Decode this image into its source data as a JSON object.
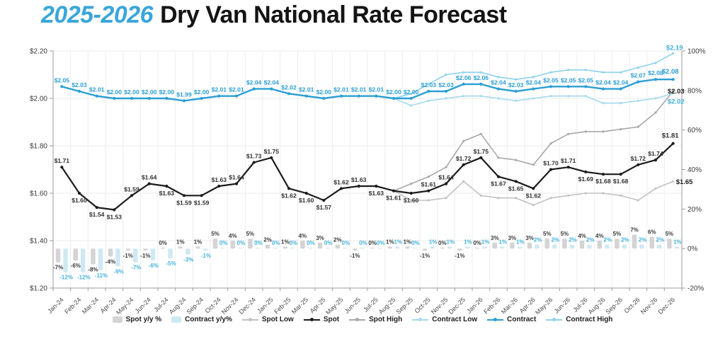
{
  "title": {
    "highlight": "2025-2026",
    "rest": "Dry Van National Rate Forecast",
    "highlight_color": "#3aa6da",
    "text_color": "#141414"
  },
  "chart_data": {
    "type": "combo-bar-line",
    "title": "2025-2026 Dry Van National Rate Forecast",
    "grid": true,
    "legend_position": "bottom",
    "categories": [
      "Jan-24",
      "Feb-24",
      "Mar-24",
      "Apr-24",
      "May-24",
      "Jun-24",
      "Jul-24",
      "Aug-24",
      "Sep-24",
      "Oct-24",
      "Nov-24",
      "Dec-24",
      "Jan-25",
      "Feb-25",
      "Mar-25",
      "Apr-25",
      "May-25",
      "Jun-25",
      "Jul-25",
      "Aug-25",
      "Sep-25",
      "Oct-25",
      "Nov-25",
      "Dec-25",
      "Jan-26",
      "Feb-26",
      "Mar-26",
      "Apr-26",
      "May-26",
      "Jun-26",
      "Jul-26",
      "Aug-26",
      "Sep-26",
      "Oct-26",
      "Nov-26",
      "Dec-26"
    ],
    "left_axis": {
      "min": 1.2,
      "max": 2.2,
      "ticks": [
        "$1.20",
        "$1.40",
        "$1.60",
        "$1.80",
        "$2.00",
        "$2.20"
      ]
    },
    "right_axis": {
      "min": -20,
      "max": 100,
      "ticks": [
        "-20%",
        "0%",
        "20%",
        "40%",
        "60%",
        "80%",
        "100%"
      ]
    },
    "series": [
      {
        "name": "Spot y/y %",
        "type": "bar",
        "axis": "right",
        "color": "#d4d4d4",
        "label_color": "#3a3a3a",
        "values": [
          -7,
          -6,
          -8,
          -4,
          -1,
          -1,
          0,
          1,
          1,
          5,
          4,
          5,
          2,
          1,
          4,
          3,
          2,
          -1,
          0,
          1,
          1,
          -1,
          0,
          -1,
          0,
          3,
          3,
          3,
          5,
          5,
          4,
          4,
          5,
          7,
          6,
          5
        ]
      },
      {
        "name": "Contract y/y%",
        "type": "bar",
        "axis": "right",
        "color": "#cfe9f4",
        "label_color": "#45b3db",
        "values": [
          -12,
          -12,
          -11,
          -9,
          -7,
          -6,
          -5,
          -3,
          -1,
          0,
          0,
          0,
          0,
          0,
          0,
          0,
          0,
          0,
          0,
          1,
          0,
          1,
          1,
          1,
          1,
          1,
          1,
          2,
          2,
          2,
          2,
          2,
          2,
          2,
          2,
          1
        ]
      },
      {
        "name": "Spot Low",
        "type": "line",
        "axis": "left",
        "color": "#c2c2c2",
        "end_label": "$1.65",
        "end_label_color": "#1c1c1c",
        "values": [
          null,
          null,
          null,
          null,
          null,
          null,
          null,
          null,
          null,
          null,
          null,
          null,
          null,
          null,
          null,
          null,
          null,
          null,
          null,
          1.61,
          1.57,
          1.57,
          1.58,
          1.65,
          1.59,
          1.58,
          1.58,
          1.55,
          1.58,
          1.59,
          1.6,
          1.6,
          1.59,
          1.57,
          1.62,
          1.65
        ]
      },
      {
        "name": "Spot",
        "type": "line",
        "axis": "left",
        "color": "#1c1c1c",
        "label_color": "#2f2f2f",
        "point_labels": true,
        "label_prefix": "$",
        "values": [
          1.71,
          1.6,
          1.54,
          1.53,
          1.59,
          1.64,
          1.63,
          1.59,
          1.59,
          1.63,
          1.64,
          1.73,
          1.75,
          1.62,
          1.6,
          1.57,
          1.62,
          1.63,
          1.63,
          1.61,
          1.6,
          1.61,
          1.64,
          1.72,
          1.75,
          1.67,
          1.65,
          1.62,
          1.7,
          1.71,
          1.69,
          1.68,
          1.68,
          1.72,
          1.74,
          1.81
        ]
      },
      {
        "name": "Spot High",
        "type": "line",
        "axis": "left",
        "color": "#a8a8a8",
        "end_label": "$2.03",
        "end_label_color": "#1c1c1c",
        "values": [
          null,
          null,
          null,
          null,
          null,
          null,
          null,
          null,
          null,
          null,
          null,
          null,
          null,
          null,
          null,
          null,
          null,
          null,
          null,
          1.61,
          1.64,
          1.67,
          1.71,
          1.82,
          1.85,
          1.75,
          1.74,
          1.72,
          1.81,
          1.85,
          1.86,
          1.86,
          1.87,
          1.88,
          1.94,
          2.03
        ]
      },
      {
        "name": "Contract Low",
        "type": "line",
        "axis": "left",
        "color": "#a5daee",
        "end_label": "$2.02",
        "end_label_color": "#3fb0dc",
        "values": [
          null,
          null,
          null,
          null,
          null,
          null,
          null,
          null,
          null,
          null,
          null,
          null,
          null,
          null,
          null,
          null,
          null,
          null,
          null,
          2.0,
          1.97,
          1.99,
          2.0,
          2.01,
          2.01,
          2.0,
          1.99,
          2.0,
          2.01,
          2.01,
          2.01,
          1.98,
          1.98,
          1.99,
          2.0,
          2.02
        ]
      },
      {
        "name": "Contract",
        "type": "line",
        "axis": "left",
        "color": "#2b9fd3",
        "label_color": "#2a9ed3",
        "point_labels": true,
        "label_prefix": "$",
        "values": [
          2.05,
          2.03,
          2.01,
          2.0,
          2.0,
          2.0,
          2.0,
          1.99,
          2.0,
          2.01,
          2.01,
          2.04,
          2.04,
          2.02,
          2.01,
          2.0,
          2.01,
          2.01,
          2.01,
          2.0,
          2.0,
          2.03,
          2.03,
          2.06,
          2.06,
          2.04,
          2.03,
          2.04,
          2.05,
          2.05,
          2.05,
          2.04,
          2.04,
          2.07,
          2.08,
          2.08
        ]
      },
      {
        "name": "Contract High",
        "type": "line",
        "axis": "left",
        "color": "#8ed2ea",
        "end_label": "$2.19",
        "end_label_color": "#3fb0dc",
        "values": [
          null,
          null,
          null,
          null,
          null,
          null,
          null,
          null,
          null,
          null,
          null,
          null,
          null,
          null,
          null,
          null,
          null,
          null,
          null,
          2.0,
          2.02,
          2.06,
          2.1,
          2.11,
          2.11,
          2.09,
          2.08,
          2.09,
          2.11,
          2.12,
          2.12,
          2.11,
          2.11,
          2.13,
          2.15,
          2.19
        ]
      }
    ],
    "legend_order": [
      "Spot y/y %",
      "Contract y/y%",
      "Spot Low",
      "Spot",
      "Spot High",
      "Contract Low",
      "Contract",
      "Contract High"
    ]
  }
}
